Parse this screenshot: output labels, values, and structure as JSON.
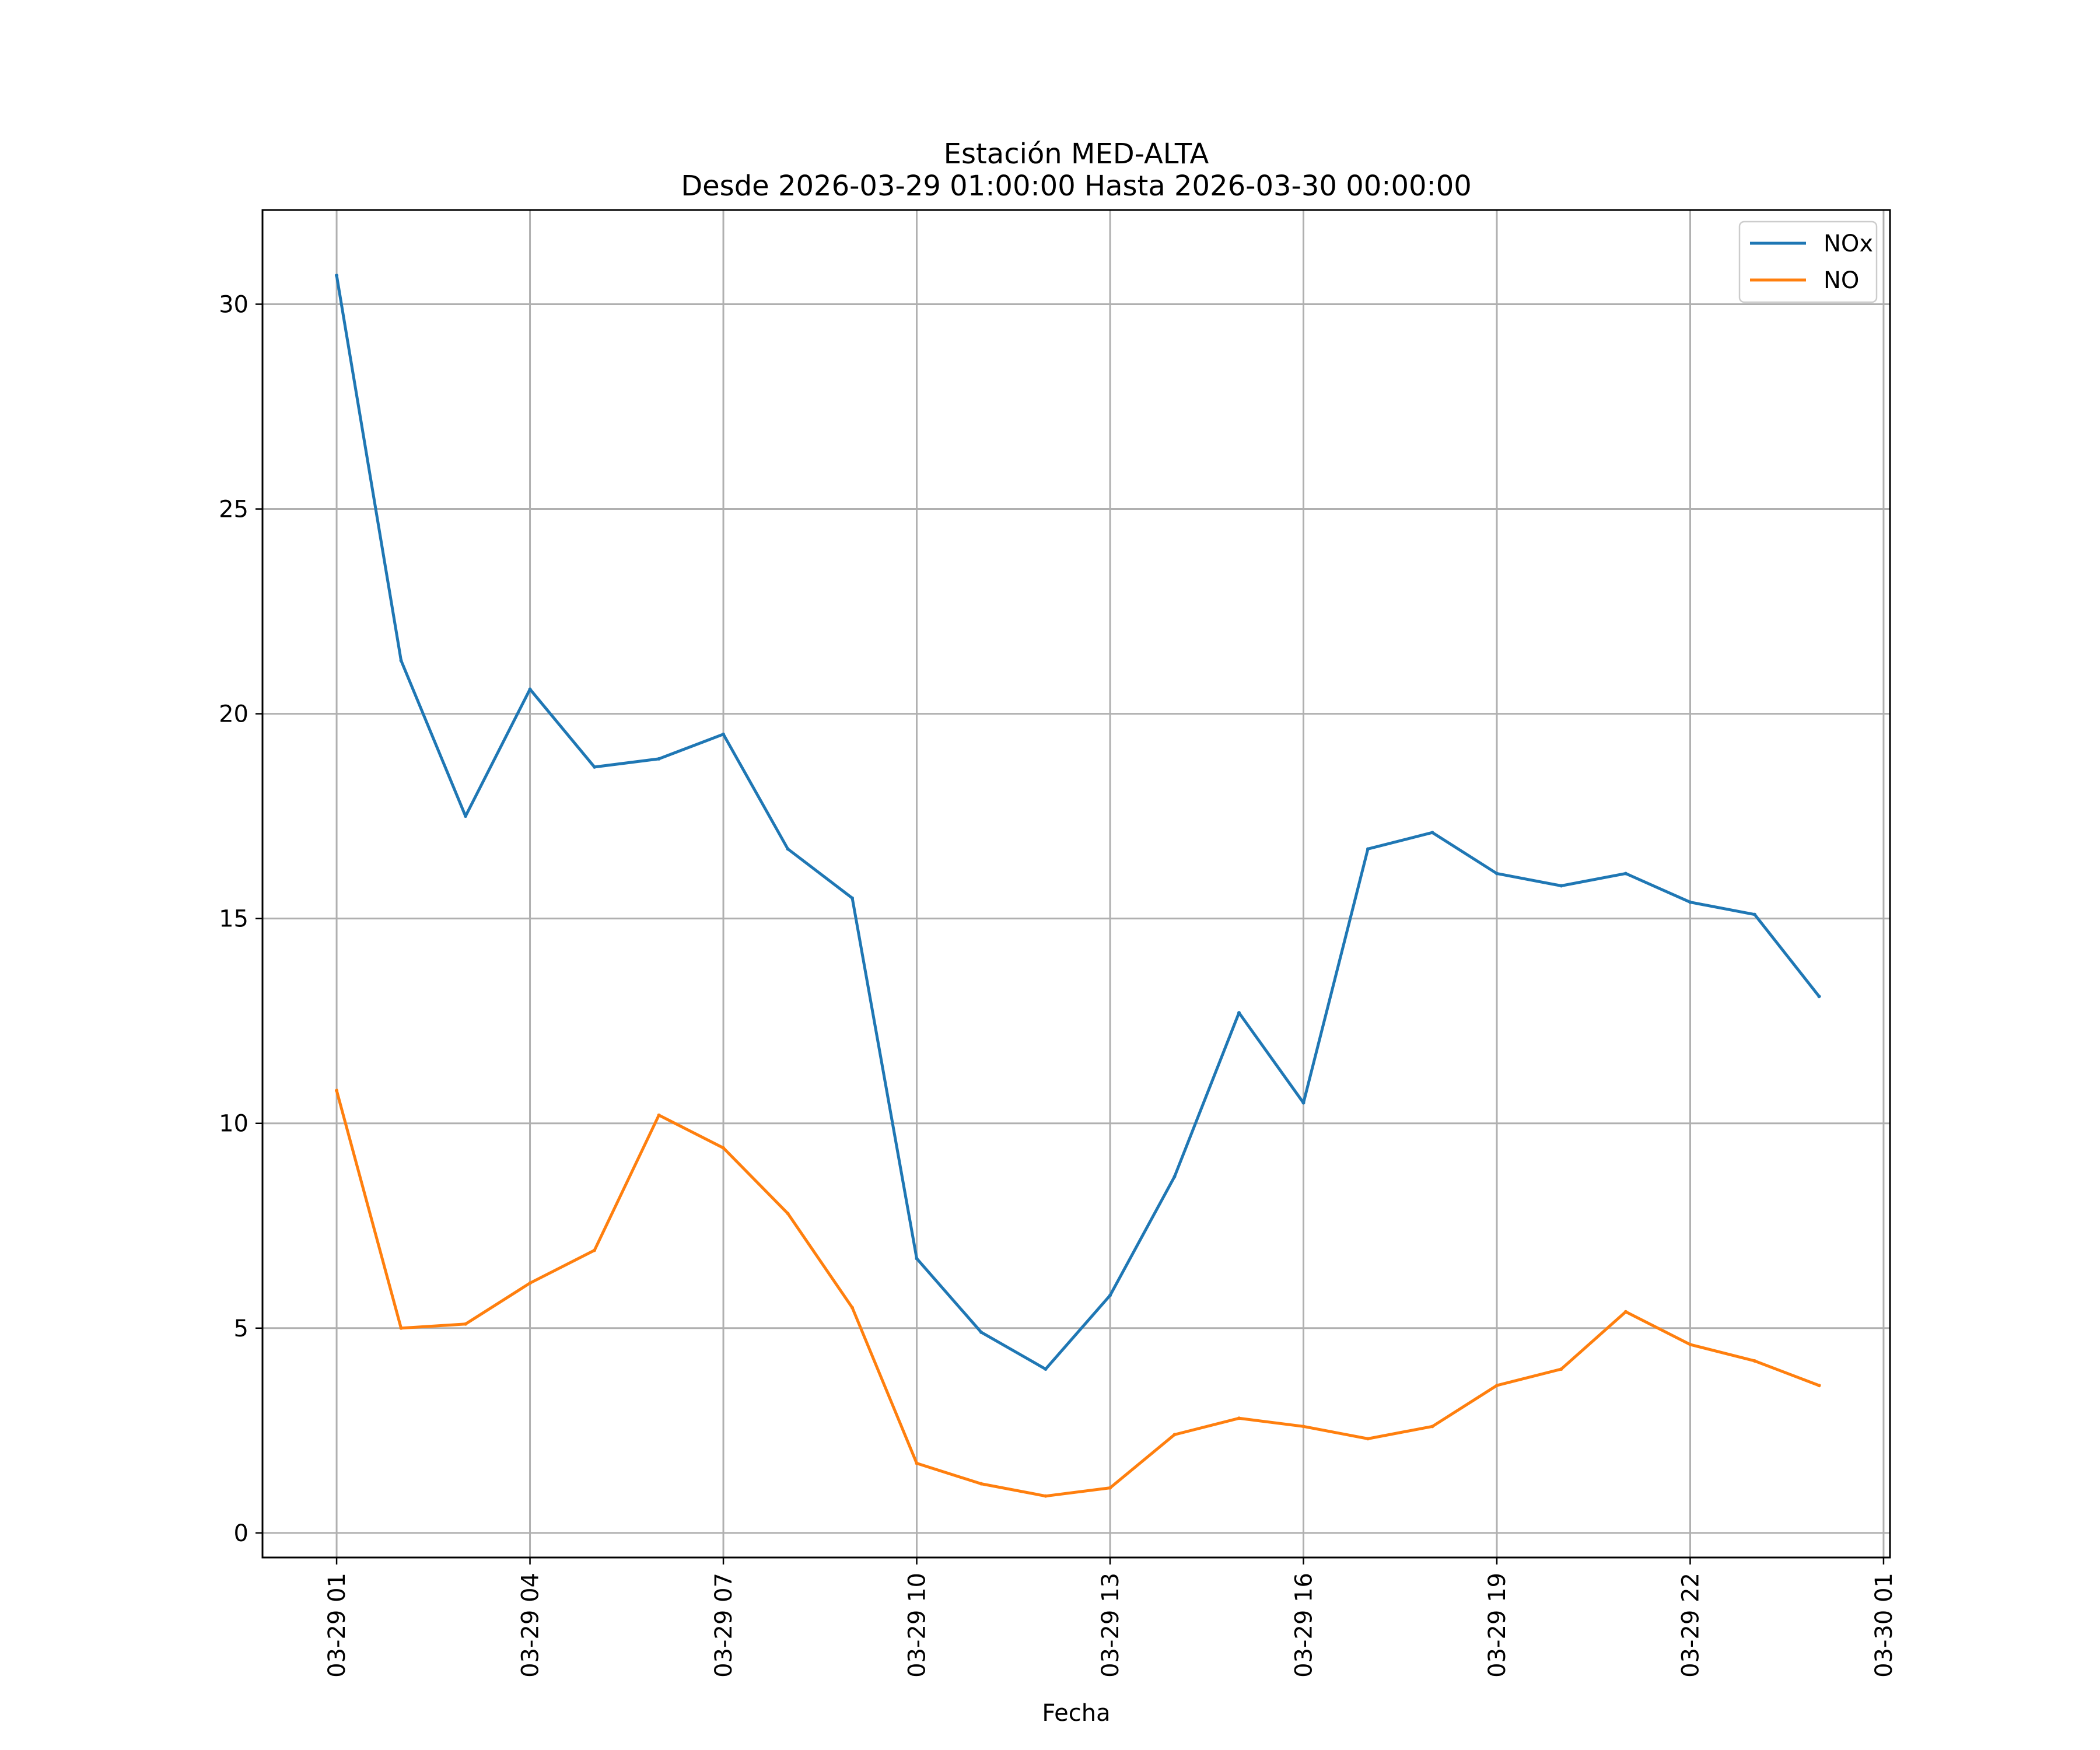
{
  "chart_data": {
    "type": "line",
    "title": "Estación MED-ALTA",
    "subtitle": "Desde 2026-03-29 01:00:00 Hasta 2026-03-30 00:00:00",
    "xlabel": "Fecha",
    "ylabel": "",
    "x": [
      "03-29 01",
      "03-29 02",
      "03-29 03",
      "03-29 04",
      "03-29 05",
      "03-29 06",
      "03-29 07",
      "03-29 08",
      "03-29 09",
      "03-29 10",
      "03-29 11",
      "03-29 12",
      "03-29 13",
      "03-29 14",
      "03-29 15",
      "03-29 16",
      "03-29 17",
      "03-29 18",
      "03-29 19",
      "03-29 20",
      "03-29 21",
      "03-29 22",
      "03-29 23",
      "03-30 00"
    ],
    "x_hours": [
      1,
      2,
      3,
      4,
      5,
      6,
      7,
      8,
      9,
      10,
      11,
      12,
      13,
      14,
      15,
      16,
      17,
      18,
      19,
      20,
      21,
      22,
      23,
      24
    ],
    "x_ticks": [
      1,
      4,
      7,
      10,
      13,
      16,
      19,
      22,
      25
    ],
    "x_tick_labels": [
      "03-29 01",
      "03-29 04",
      "03-29 07",
      "03-29 10",
      "03-29 13",
      "03-29 16",
      "03-29 19",
      "03-29 22",
      "03-30 01"
    ],
    "xlim": [
      -0.15,
      25.1
    ],
    "y_ticks": [
      0,
      5,
      10,
      15,
      20,
      25,
      30
    ],
    "y_tick_labels": [
      "0",
      "5",
      "10",
      "15",
      "20",
      "25",
      "30"
    ],
    "ylim": [
      -0.6,
      32.3
    ],
    "grid": true,
    "legend_position": "top-right",
    "series": [
      {
        "name": "NOx",
        "color": "#1f77b4",
        "values": [
          30.7,
          21.3,
          17.5,
          20.6,
          18.7,
          18.9,
          19.5,
          16.7,
          15.5,
          6.7,
          4.9,
          4.0,
          5.8,
          8.7,
          12.7,
          10.5,
          16.7,
          17.1,
          16.1,
          15.8,
          16.1,
          15.4,
          15.1,
          13.1
        ]
      },
      {
        "name": "NO",
        "color": "#ff7f0e",
        "values": [
          10.8,
          5.0,
          5.1,
          6.1,
          6.9,
          10.2,
          9.4,
          7.8,
          5.5,
          1.7,
          1.2,
          0.9,
          1.1,
          2.4,
          2.8,
          2.6,
          2.3,
          2.6,
          3.6,
          4.0,
          5.4,
          4.6,
          4.2,
          3.6
        ]
      }
    ]
  }
}
